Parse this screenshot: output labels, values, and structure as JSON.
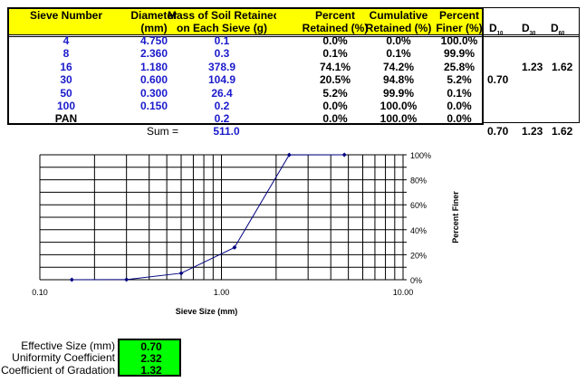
{
  "table": {
    "headers": [
      [
        "Sieve Number",
        ""
      ],
      [
        "Diameter",
        "(mm)"
      ],
      [
        "Mass of Soil Retained",
        "on Each Sieve (g)"
      ],
      [
        "Percent",
        "Retained (%)"
      ],
      [
        "Cumulative",
        "Retained (%)"
      ],
      [
        "Percent",
        "Finer (%)"
      ]
    ],
    "rows": [
      [
        "4",
        "4.750",
        "0.1",
        "0.0%",
        "0.0%",
        "100.0%"
      ],
      [
        "8",
        "2.360",
        "0.3",
        "0.1%",
        "0.1%",
        "99.9%"
      ],
      [
        "16",
        "1.180",
        "378.9",
        "74.1%",
        "74.2%",
        "25.8%"
      ],
      [
        "30",
        "0.600",
        "104.9",
        "20.5%",
        "94.8%",
        "5.2%"
      ],
      [
        "50",
        "0.300",
        "26.4",
        "5.2%",
        "99.9%",
        "0.1%"
      ],
      [
        "100",
        "0.150",
        "0.2",
        "0.0%",
        "100.0%",
        "0.0%"
      ],
      [
        "PAN",
        "",
        "0.2",
        "0.0%",
        "100.0%",
        "0.0%"
      ]
    ],
    "sum_label": "Sum =",
    "sum_value": "511.0"
  },
  "d_values": {
    "headers": [
      {
        "main": "D",
        "sub": "10"
      },
      {
        "main": "D",
        "sub": "30"
      },
      {
        "main": "D",
        "sub": "60"
      }
    ],
    "d10_row": "0.70",
    "d30": "1.23",
    "d60": "1.62",
    "totals": [
      "0.70",
      "1.23",
      "1.62"
    ]
  },
  "chart_data": {
    "type": "line",
    "x": [
      0.15,
      0.3,
      0.6,
      1.18,
      2.36,
      4.75
    ],
    "y": [
      0.0,
      0.1,
      5.2,
      25.8,
      99.9,
      100.0
    ],
    "xlabel": "Sieve Size (mm)",
    "ylabel": "Percent Finer",
    "xscale": "log",
    "xlim": [
      0.1,
      10
    ],
    "ylim": [
      0,
      100
    ],
    "xticks": [
      "0.10",
      "1.00",
      "10.00"
    ],
    "yticks": [
      "0%",
      "20%",
      "40%",
      "60%",
      "80%",
      "100%"
    ],
    "grid": true,
    "color": "#000080"
  },
  "summary": {
    "labels": [
      "Effective Size (mm)",
      "Uniformity Coefficient",
      "Coefficient of Gradation"
    ],
    "values": [
      "0.70",
      "2.32",
      "1.32"
    ],
    "color": "#00ff00"
  }
}
